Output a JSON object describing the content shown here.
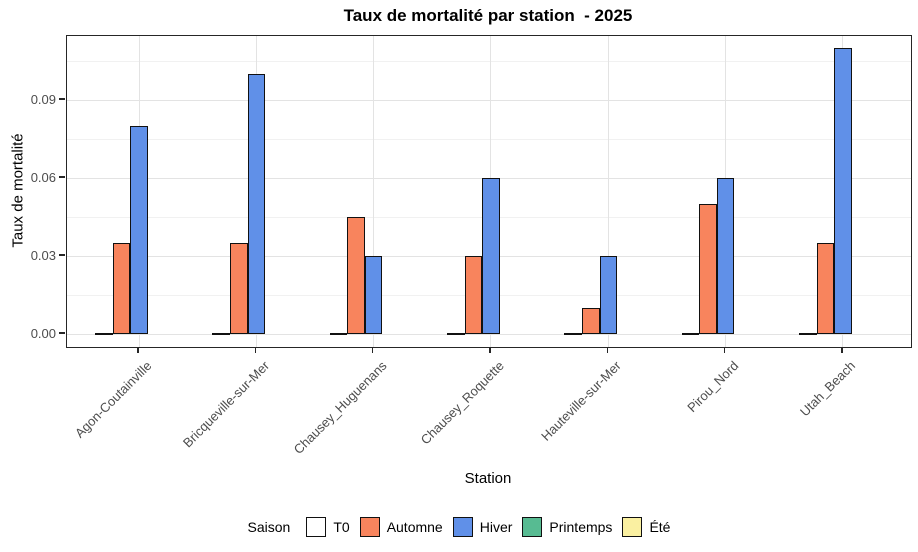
{
  "title": "Taux de mortalité par station  - 2025",
  "chart_data": {
    "type": "bar",
    "title": "Taux de mortalité par station  - 2025",
    "xlabel": "Station",
    "ylabel": "Taux de mortalité",
    "legend_title": "Saison",
    "legend_position": "bottom",
    "grid": true,
    "categories": [
      "Agon-Coutainville",
      "Bricqueville-sur-Mer",
      "Chausey_Huguenans",
      "Chausey_Roquette",
      "Hauteville-sur-Mer",
      "Pirou_Nord",
      "Utah_Beach"
    ],
    "series": [
      {
        "name": "T0",
        "color": "#FFFFFF",
        "values": [
          0,
          0,
          0,
          0,
          0,
          0,
          0
        ]
      },
      {
        "name": "Automne",
        "color": "#F8845D",
        "values": [
          0.035,
          0.035,
          0.045,
          0.03,
          0.01,
          0.05,
          0.035
        ]
      },
      {
        "name": "Hiver",
        "color": "#6090E8",
        "values": [
          0.08,
          0.1,
          0.03,
          0.06,
          0.03,
          0.06,
          0.11
        ]
      },
      {
        "name": "Printemps",
        "color": "#57BB92",
        "values": [
          null,
          null,
          null,
          null,
          null,
          null,
          null
        ]
      },
      {
        "name": "Été",
        "color": "#FAF0A1",
        "values": [
          null,
          null,
          null,
          null,
          null,
          null,
          null
        ]
      }
    ],
    "ylim": [
      -0.005,
      0.115
    ],
    "yticks": [
      0.0,
      0.03,
      0.06,
      0.09
    ],
    "ytick_labels": [
      "0.00",
      "0.03",
      "0.06",
      "0.09"
    ]
  }
}
